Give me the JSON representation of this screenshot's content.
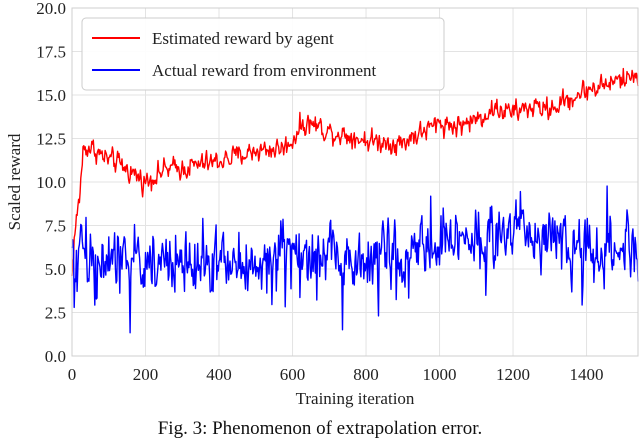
{
  "chart_data": {
    "type": "line",
    "title": "",
    "xlabel": "Training iteration",
    "ylabel": "Scaled reward",
    "xlim": [
      0,
      1540
    ],
    "ylim": [
      0.0,
      20.0
    ],
    "xticks": [
      0,
      200,
      400,
      600,
      800,
      1000,
      1200,
      1400
    ],
    "xtick_labels": [
      "0",
      "200",
      "400",
      "600",
      "800",
      "1000",
      "1200",
      "1400"
    ],
    "yticks": [
      0.0,
      2.5,
      5.0,
      7.5,
      10.0,
      12.5,
      15.0,
      17.5,
      20.0
    ],
    "ytick_labels": [
      "0.0",
      "2.5",
      "5.0",
      "7.5",
      "10.0",
      "12.5",
      "15.0",
      "17.5",
      "20.0"
    ],
    "grid": true,
    "legend_position": "top-left",
    "series": [
      {
        "name": "Estimated reward by agent",
        "color": "#ff0000",
        "x": [
          0,
          5,
          10,
          20,
          30,
          40,
          60,
          80,
          100,
          130,
          160,
          200,
          220,
          250,
          300,
          350,
          400,
          450,
          500,
          550,
          580,
          600,
          620,
          650,
          700,
          750,
          800,
          850,
          900,
          920,
          950,
          1000,
          1050,
          1100,
          1150,
          1200,
          1250,
          1300,
          1350,
          1400,
          1450,
          1500,
          1540
        ],
        "y": [
          4.5,
          6.5,
          7.5,
          9.0,
          11.8,
          12.0,
          11.9,
          11.5,
          11.3,
          11.0,
          10.6,
          10.0,
          10.3,
          10.7,
          10.8,
          11.0,
          11.2,
          11.5,
          11.8,
          11.9,
          12.0,
          12.4,
          13.2,
          13.4,
          12.9,
          12.7,
          12.4,
          12.3,
          12.2,
          12.6,
          12.8,
          13.4,
          13.2,
          13.6,
          14.2,
          14.0,
          14.3,
          14.2,
          14.7,
          15.3,
          15.6,
          15.9,
          16.2
        ]
      },
      {
        "name": "Actual reward from environment",
        "color": "#0000ff",
        "x": [
          0,
          10,
          20,
          30,
          40,
          60,
          80,
          100,
          130,
          160,
          200,
          250,
          300,
          350,
          400,
          450,
          500,
          550,
          600,
          650,
          700,
          750,
          800,
          850,
          900,
          950,
          1000,
          1050,
          1100,
          1150,
          1200,
          1250,
          1300,
          1350,
          1400,
          1450,
          1500,
          1540
        ],
        "y": [
          6.0,
          4.0,
          6.5,
          7.5,
          5.5,
          5.2,
          5.0,
          5.3,
          5.6,
          5.4,
          5.5,
          5.4,
          5.2,
          5.5,
          5.4,
          5.3,
          5.2,
          5.6,
          5.8,
          5.5,
          5.6,
          5.4,
          5.5,
          5.7,
          5.6,
          5.8,
          6.5,
          6.8,
          6.9,
          7.1,
          7.3,
          6.9,
          6.8,
          6.3,
          6.1,
          6.0,
          6.1,
          6.3
        ]
      }
    ]
  },
  "caption": "Fig. 3: Phenomenon of extrapolation error."
}
